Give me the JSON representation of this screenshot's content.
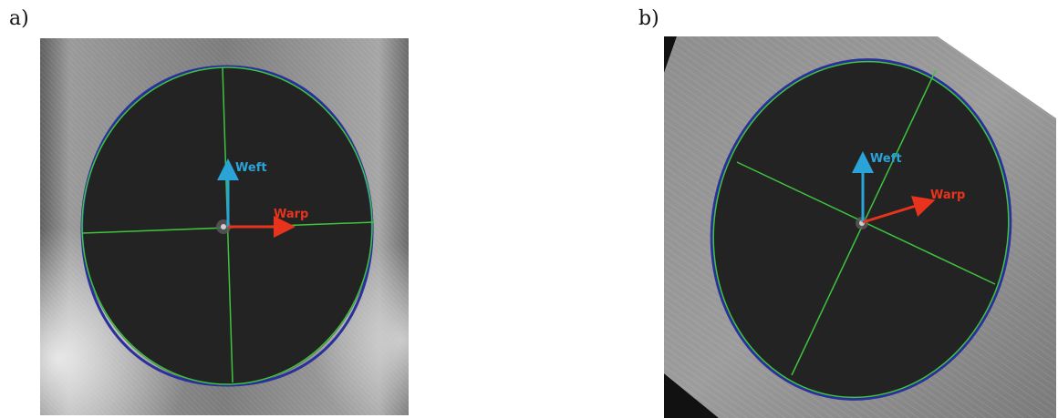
{
  "panels": [
    {
      "label": "a)",
      "weft_label": "Weft",
      "warp_label": "Warp"
    },
    {
      "label": "b)",
      "weft_label": "Weft",
      "warp_label": "Warp"
    }
  ],
  "colors": {
    "weft_arrow": "#2aa3d6",
    "warp_arrow": "#e8341c",
    "ellipse_fit": "#3fc43f",
    "contour": "#2a2f9c",
    "sample_dark": "#232323",
    "background_fabric": "#8a8a8a"
  }
}
